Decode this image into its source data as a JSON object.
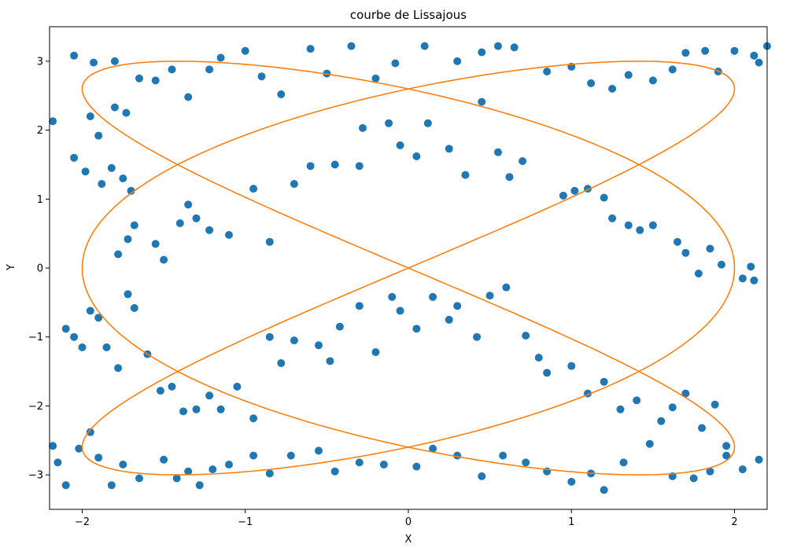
{
  "chart_data": {
    "type": "scatter",
    "title": "courbe de Lissajous",
    "xlabel": "X",
    "ylabel": "Y",
    "xlim": [
      -2.2,
      2.2
    ],
    "ylim": [
      -3.5,
      3.5
    ],
    "xticks": [
      -2,
      -1,
      0,
      1,
      2
    ],
    "xtick_labels": [
      "−2",
      "−1",
      "0",
      "1",
      "2"
    ],
    "yticks": [
      -3,
      -2,
      -1,
      0,
      1,
      2,
      3
    ],
    "ytick_labels": [
      "−3",
      "−2",
      "−1",
      "0",
      "1",
      "2",
      "3"
    ],
    "grid": false,
    "legend": "none",
    "curve": {
      "type": "line",
      "color": "#ff7f0e",
      "equation": "x = 2 sin(3t), y = 3 sin(2t)",
      "x_amplitude": 2,
      "x_frequency": 3,
      "y_amplitude": 3,
      "y_frequency": 2,
      "t_range": [
        0,
        6.283
      ]
    },
    "scatter": {
      "color": "#1f77b4",
      "points": [
        [
          -2.18,
          2.13
        ],
        [
          -2.05,
          1.6
        ],
        [
          -1.98,
          1.4
        ],
        [
          -1.88,
          1.22
        ],
        [
          -1.82,
          1.45
        ],
        [
          -1.75,
          1.3
        ],
        [
          -1.7,
          1.12
        ],
        [
          -1.95,
          2.2
        ],
        [
          -1.9,
          1.92
        ],
        [
          -1.8,
          2.33
        ],
        [
          -1.73,
          2.25
        ],
        [
          -2.05,
          3.08
        ],
        [
          -1.93,
          2.98
        ],
        [
          -1.8,
          3.0
        ],
        [
          -1.65,
          2.75
        ],
        [
          -1.55,
          2.72
        ],
        [
          -1.45,
          2.88
        ],
        [
          -1.35,
          2.48
        ],
        [
          -1.22,
          2.88
        ],
        [
          -1.15,
          3.05
        ],
        [
          -1.0,
          3.15
        ],
        [
          -0.9,
          2.78
        ],
        [
          -0.78,
          2.52
        ],
        [
          -0.6,
          3.18
        ],
        [
          -0.5,
          2.82
        ],
        [
          -0.35,
          3.22
        ],
        [
          -0.2,
          2.75
        ],
        [
          -0.08,
          2.97
        ],
        [
          0.1,
          3.22
        ],
        [
          0.3,
          3.0
        ],
        [
          0.45,
          3.13
        ],
        [
          0.55,
          3.22
        ],
        [
          0.65,
          3.2
        ],
        [
          0.85,
          2.85
        ],
        [
          1.0,
          2.92
        ],
        [
          1.12,
          2.68
        ],
        [
          1.25,
          2.6
        ],
        [
          1.35,
          2.8
        ],
        [
          1.5,
          2.72
        ],
        [
          1.62,
          2.88
        ],
        [
          1.7,
          3.12
        ],
        [
          1.82,
          3.15
        ],
        [
          1.9,
          2.85
        ],
        [
          2.0,
          3.15
        ],
        [
          2.12,
          3.08
        ],
        [
          2.2,
          3.22
        ],
        [
          2.15,
          2.98
        ],
        [
          -1.78,
          0.2
        ],
        [
          -1.72,
          0.42
        ],
        [
          -1.68,
          0.62
        ],
        [
          -1.55,
          0.35
        ],
        [
          -1.5,
          0.12
        ],
        [
          -1.4,
          0.65
        ],
        [
          -1.35,
          0.92
        ],
        [
          -1.3,
          0.72
        ],
        [
          -1.22,
          0.55
        ],
        [
          -1.1,
          0.48
        ],
        [
          -0.95,
          1.15
        ],
        [
          -0.85,
          0.38
        ],
        [
          -0.7,
          1.22
        ],
        [
          -0.6,
          1.48
        ],
        [
          -0.45,
          1.5
        ],
        [
          -0.3,
          1.48
        ],
        [
          -0.28,
          2.03
        ],
        [
          -0.12,
          2.1
        ],
        [
          -0.05,
          1.78
        ],
        [
          0.05,
          1.62
        ],
        [
          0.12,
          2.1
        ],
        [
          0.25,
          1.73
        ],
        [
          0.35,
          1.35
        ],
        [
          0.45,
          2.41
        ],
        [
          0.55,
          1.68
        ],
        [
          0.62,
          1.32
        ],
        [
          0.7,
          1.55
        ],
        [
          0.95,
          1.05
        ],
        [
          1.02,
          1.12
        ],
        [
          1.1,
          1.15
        ],
        [
          1.2,
          1.02
        ],
        [
          1.25,
          0.72
        ],
        [
          1.35,
          0.62
        ],
        [
          1.42,
          0.55
        ],
        [
          1.5,
          0.62
        ],
        [
          1.65,
          0.38
        ],
        [
          1.7,
          0.22
        ],
        [
          1.78,
          -0.08
        ],
        [
          1.85,
          0.28
        ],
        [
          1.92,
          0.05
        ],
        [
          2.05,
          -0.15
        ],
        [
          2.1,
          0.02
        ],
        [
          2.12,
          -0.18
        ],
        [
          -2.1,
          -0.88
        ],
        [
          -2.05,
          -1.0
        ],
        [
          -2.0,
          -1.15
        ],
        [
          -1.95,
          -0.62
        ],
        [
          -1.9,
          -0.72
        ],
        [
          -1.85,
          -1.15
        ],
        [
          -1.78,
          -1.45
        ],
        [
          -1.72,
          -0.38
        ],
        [
          -1.68,
          -0.58
        ],
        [
          -1.6,
          -1.25
        ],
        [
          -1.52,
          -1.78
        ],
        [
          -1.45,
          -1.72
        ],
        [
          -1.38,
          -2.08
        ],
        [
          -1.3,
          -2.05
        ],
        [
          -1.22,
          -1.85
        ],
        [
          -1.15,
          -2.05
        ],
        [
          -1.05,
          -1.72
        ],
        [
          -0.95,
          -2.18
        ],
        [
          -0.85,
          -1.0
        ],
        [
          -0.78,
          -1.38
        ],
        [
          -0.7,
          -1.05
        ],
        [
          -0.55,
          -1.12
        ],
        [
          -0.48,
          -1.35
        ],
        [
          -0.42,
          -0.85
        ],
        [
          -0.3,
          -0.55
        ],
        [
          -0.2,
          -1.22
        ],
        [
          -0.1,
          -0.42
        ],
        [
          -0.05,
          -0.62
        ],
        [
          0.05,
          -0.88
        ],
        [
          0.15,
          -0.42
        ],
        [
          0.25,
          -0.75
        ],
        [
          0.3,
          -0.55
        ],
        [
          0.42,
          -1.0
        ],
        [
          0.5,
          -0.4
        ],
        [
          0.6,
          -0.28
        ],
        [
          0.72,
          -0.98
        ],
        [
          0.8,
          -1.3
        ],
        [
          0.85,
          -1.52
        ],
        [
          1.0,
          -1.42
        ],
        [
          1.1,
          -1.82
        ],
        [
          1.2,
          -1.65
        ],
        [
          1.3,
          -2.05
        ],
        [
          1.4,
          -1.92
        ],
        [
          1.55,
          -2.22
        ],
        [
          1.62,
          -2.02
        ],
        [
          1.7,
          -1.82
        ],
        [
          1.8,
          -2.32
        ],
        [
          1.88,
          -1.98
        ],
        [
          1.95,
          -2.58
        ],
        [
          -2.18,
          -2.58
        ],
        [
          -2.15,
          -2.82
        ],
        [
          -2.1,
          -3.15
        ],
        [
          -2.02,
          -2.62
        ],
        [
          -1.95,
          -2.38
        ],
        [
          -1.9,
          -2.75
        ],
        [
          -1.82,
          -3.15
        ],
        [
          -1.75,
          -2.85
        ],
        [
          -1.65,
          -3.05
        ],
        [
          -1.5,
          -2.78
        ],
        [
          -1.42,
          -3.05
        ],
        [
          -1.35,
          -2.95
        ],
        [
          -1.28,
          -3.15
        ],
        [
          -1.2,
          -2.92
        ],
        [
          -1.1,
          -2.85
        ],
        [
          -0.95,
          -2.72
        ],
        [
          -0.85,
          -2.98
        ],
        [
          -0.72,
          -2.72
        ],
        [
          -0.55,
          -2.65
        ],
        [
          -0.45,
          -2.95
        ],
        [
          -0.3,
          -2.82
        ],
        [
          -0.15,
          -2.85
        ],
        [
          0.05,
          -2.88
        ],
        [
          0.15,
          -2.62
        ],
        [
          0.3,
          -2.72
        ],
        [
          0.45,
          -3.02
        ],
        [
          0.58,
          -2.72
        ],
        [
          0.72,
          -2.82
        ],
        [
          0.85,
          -2.95
        ],
        [
          1.0,
          -3.1
        ],
        [
          1.12,
          -2.98
        ],
        [
          1.2,
          -3.22
        ],
        [
          1.32,
          -2.82
        ],
        [
          1.48,
          -2.55
        ],
        [
          1.62,
          -3.02
        ],
        [
          1.75,
          -3.05
        ],
        [
          1.85,
          -2.95
        ],
        [
          1.95,
          -2.72
        ],
        [
          2.05,
          -2.92
        ],
        [
          2.15,
          -2.78
        ]
      ]
    }
  }
}
